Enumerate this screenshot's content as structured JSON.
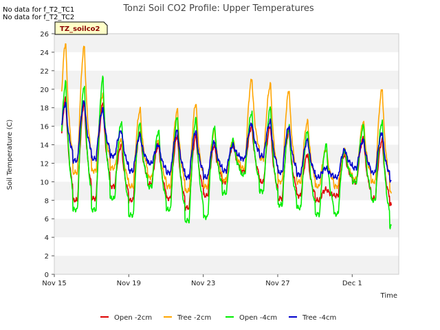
{
  "notes": [
    "No data for f_T2_TC1",
    "No data for f_T2_TC2"
  ],
  "badge": "TZ_soilco2",
  "chart_data": {
    "type": "line",
    "title": "Tonzi Soil CO2 Profile: Upper Temperatures",
    "xlabel": "Time",
    "ylabel": "Soil Temperature (C)",
    "ylim": [
      0,
      26
    ],
    "yticks": [
      0,
      2,
      4,
      6,
      8,
      10,
      12,
      14,
      16,
      18,
      20,
      22,
      24,
      26
    ],
    "xlim": [
      "2015-11-15",
      "2015-12-03T12:00"
    ],
    "xticks": [
      {
        "day": 0,
        "label": "Nov 15"
      },
      {
        "day": 4,
        "label": "Nov 19"
      },
      {
        "day": 8,
        "label": "Nov 23"
      },
      {
        "day": 12,
        "label": "Nov 27"
      },
      {
        "day": 16,
        "label": "Dec 1"
      }
    ],
    "grid": "alternating horizontal bands",
    "legend": "bottom",
    "series": [
      {
        "name": "Open -2cm",
        "color": "#dd0000",
        "min": [
          9.2,
          8.0,
          8.2,
          9.5,
          8.0,
          9.8,
          8.2,
          7.2,
          8.5,
          10.0,
          11.2,
          10.0,
          8.2,
          8.5,
          8.0,
          8.5,
          10.0,
          8.2,
          7.5
        ],
        "peak": [
          19.0,
          18.5,
          18.5,
          14.0,
          15.5,
          14.0,
          15.0,
          15.0,
          14.0,
          14.0,
          16.0,
          16.0,
          15.5,
          13.0,
          9.2,
          13.0,
          14.8,
          14.5
        ]
      },
      {
        "name": "Tree -2cm",
        "color": "#ffa500",
        "min": [
          11.8,
          11.0,
          11.2,
          11.5,
          9.5,
          10.5,
          9.5,
          9.0,
          9.5,
          10.2,
          11.5,
          12.5,
          10.0,
          10.0,
          9.5,
          9.5,
          10.3,
          10.0,
          9.0
        ],
        "peak": [
          25.0,
          24.6,
          19.5,
          14.5,
          17.8,
          14.5,
          17.7,
          18.5,
          15.5,
          14.5,
          21.1,
          20.5,
          19.9,
          16.5,
          13.5,
          13.5,
          16.5,
          20.0
        ]
      },
      {
        "name": "Open -4cm",
        "color": "#00ee00",
        "min": [
          7.8,
          7.0,
          7.0,
          8.2,
          6.4,
          9.5,
          7.0,
          5.8,
          6.2,
          8.8,
          10.8,
          9.0,
          7.5,
          7.2,
          6.5,
          6.5,
          10.0,
          8.0,
          5.2
        ],
        "peak": [
          20.7,
          20.4,
          21.2,
          16.5,
          16.3,
          15.5,
          17.0,
          16.8,
          16.0,
          14.5,
          17.5,
          18.0,
          16.0,
          15.5,
          14.0,
          13.5,
          16.0,
          16.5
        ]
      },
      {
        "name": "Tree -4cm",
        "color": "#0000cc",
        "min": [
          12.8,
          12.3,
          12.5,
          12.8,
          11.2,
          12.0,
          11.0,
          10.5,
          10.5,
          11.2,
          12.5,
          12.8,
          11.0,
          10.8,
          10.5,
          10.5,
          11.5,
          11.0,
          10.2
        ],
        "peak": [
          18.5,
          18.7,
          17.8,
          15.5,
          15.0,
          14.0,
          15.5,
          15.5,
          14.3,
          14.0,
          16.3,
          16.5,
          16.0,
          14.5,
          11.5,
          13.5,
          14.5,
          15.3
        ]
      }
    ]
  }
}
